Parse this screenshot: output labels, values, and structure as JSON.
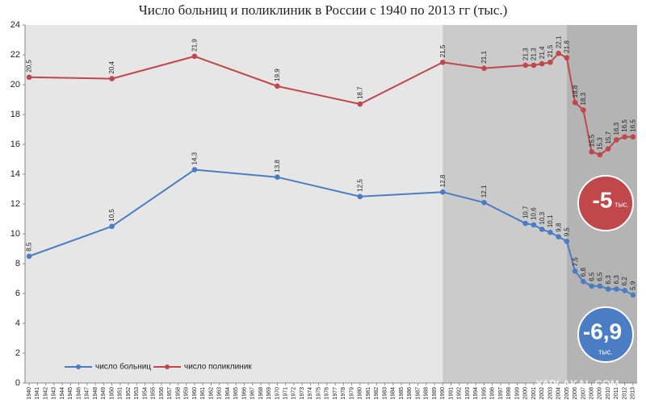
{
  "chart_data": {
    "type": "line",
    "title": "Число больниц и поликлиник в России с 1940 по 2013 гг (тыс.)",
    "x": [
      1940,
      1950,
      1960,
      1970,
      1980,
      1990,
      1995,
      2000,
      2001,
      2002,
      2003,
      2004,
      2005,
      2006,
      2007,
      2008,
      2009,
      2010,
      2011,
      2012,
      2013
    ],
    "series": [
      {
        "name": "число больниц",
        "color": "#4a7dc4",
        "values": [
          8.5,
          10.5,
          14.3,
          13.8,
          12.5,
          12.8,
          12.1,
          10.7,
          10.6,
          10.3,
          10.1,
          9.8,
          9.5,
          7.5,
          6.8,
          6.5,
          6.5,
          6.3,
          6.3,
          6.2,
          5.9
        ],
        "value_labels": [
          "8,5",
          "10,5",
          "14,3",
          "13,8",
          "12,5",
          "12,8",
          "12,1",
          "10,7",
          "10,6",
          "10,3",
          "10,1",
          "9,8",
          "9,5",
          "7,5",
          "6,8",
          "6,5",
          "6,5",
          "6,3",
          "6,3",
          "6,2",
          "5,9"
        ]
      },
      {
        "name": "число поликлиник",
        "color": "#c0474a",
        "values": [
          20.5,
          20.4,
          21.9,
          19.9,
          18.7,
          21.5,
          21.1,
          21.3,
          21.3,
          21.4,
          21.5,
          22.1,
          21.8,
          18.8,
          18.3,
          15.5,
          15.3,
          15.7,
          16.3,
          16.5,
          16.5
        ],
        "value_labels": [
          "20,5",
          "20,4",
          "21,9",
          "19,9",
          "18,7",
          "21,5",
          "21,1",
          "21,3",
          "21,3",
          "21,4",
          "21,5",
          "22,1",
          "21,8",
          "18,8",
          "18,3",
          "15,5",
          "15,3",
          "15,7",
          "16,3",
          "16,5",
          "16,5"
        ]
      }
    ],
    "xlim": [
      1939.5,
      2013.5
    ],
    "xticks": [
      1940,
      1941,
      1942,
      1943,
      1944,
      1945,
      1946,
      1947,
      1948,
      1949,
      1950,
      1951,
      1952,
      1953,
      1954,
      1955,
      1956,
      1957,
      1958,
      1959,
      1960,
      1961,
      1962,
      1963,
      1964,
      1965,
      1966,
      1967,
      1968,
      1969,
      1970,
      1971,
      1972,
      1973,
      1974,
      1975,
      1976,
      1977,
      1978,
      1979,
      1980,
      1981,
      1982,
      1983,
      1984,
      1985,
      1986,
      1987,
      1988,
      1989,
      1990,
      1991,
      1992,
      1993,
      1994,
      1995,
      1996,
      1997,
      1998,
      1999,
      2000,
      2001,
      2002,
      2003,
      2004,
      2005,
      2006,
      2007,
      2008,
      2009,
      2010,
      2011,
      2012,
      2013
    ],
    "ylim": [
      0,
      24
    ],
    "yticks": [
      0,
      2,
      4,
      6,
      8,
      10,
      12,
      14,
      16,
      18,
      20,
      22,
      24
    ],
    "regions": [
      {
        "from": 1939.5,
        "to": 1990,
        "color": "#e6e6e6"
      },
      {
        "from": 1990,
        "to": 2005,
        "color": "#cbcbcb"
      },
      {
        "from": 2005,
        "to": 2013.5,
        "color": "#b4b4b4"
      }
    ],
    "annotations": [
      {
        "value": "-5",
        "unit": "тыс.",
        "color": "#c0474a",
        "series": 1
      },
      {
        "value": "-6,9",
        "unit": "тыс.",
        "color": "#4a7dc4",
        "series": 0
      }
    ],
    "watermark": "YAPLAKAL.COM"
  }
}
